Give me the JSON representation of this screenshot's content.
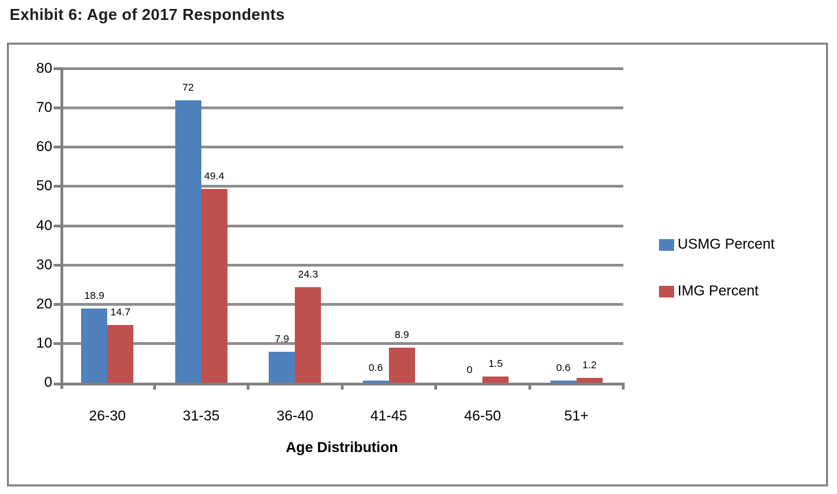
{
  "title": "Exhibit 6: Age of 2017 Respondents",
  "chart_data": {
    "type": "bar",
    "title": "Exhibit 6: Age of 2017 Respondents",
    "categories": [
      "26-30",
      "31-35",
      "36-40",
      "41-45",
      "46-50",
      "51+"
    ],
    "series": [
      {
        "name": "USMG Percent",
        "color": "#4F81BD",
        "values": [
          18.9,
          72,
          7.9,
          0.6,
          0,
          0.6
        ],
        "labels": [
          "18.9",
          "72",
          "7.9",
          "0.6",
          "0",
          "0.6"
        ]
      },
      {
        "name": "IMG Percent",
        "color": "#C0504D",
        "values": [
          14.7,
          49.4,
          24.3,
          8.9,
          1.5,
          1.2
        ],
        "labels": [
          "14.7",
          "49.4",
          "24.3",
          "8.9",
          "1.5",
          "1.2"
        ]
      }
    ],
    "xlabel": "Age Distribution",
    "ylabel": "",
    "ylim": [
      0,
      80
    ],
    "yticks": [
      0,
      10,
      20,
      30,
      40,
      50,
      60,
      70,
      80
    ],
    "ytick_step": 10,
    "grid": true,
    "legend_position": "right",
    "data_labels": true
  }
}
